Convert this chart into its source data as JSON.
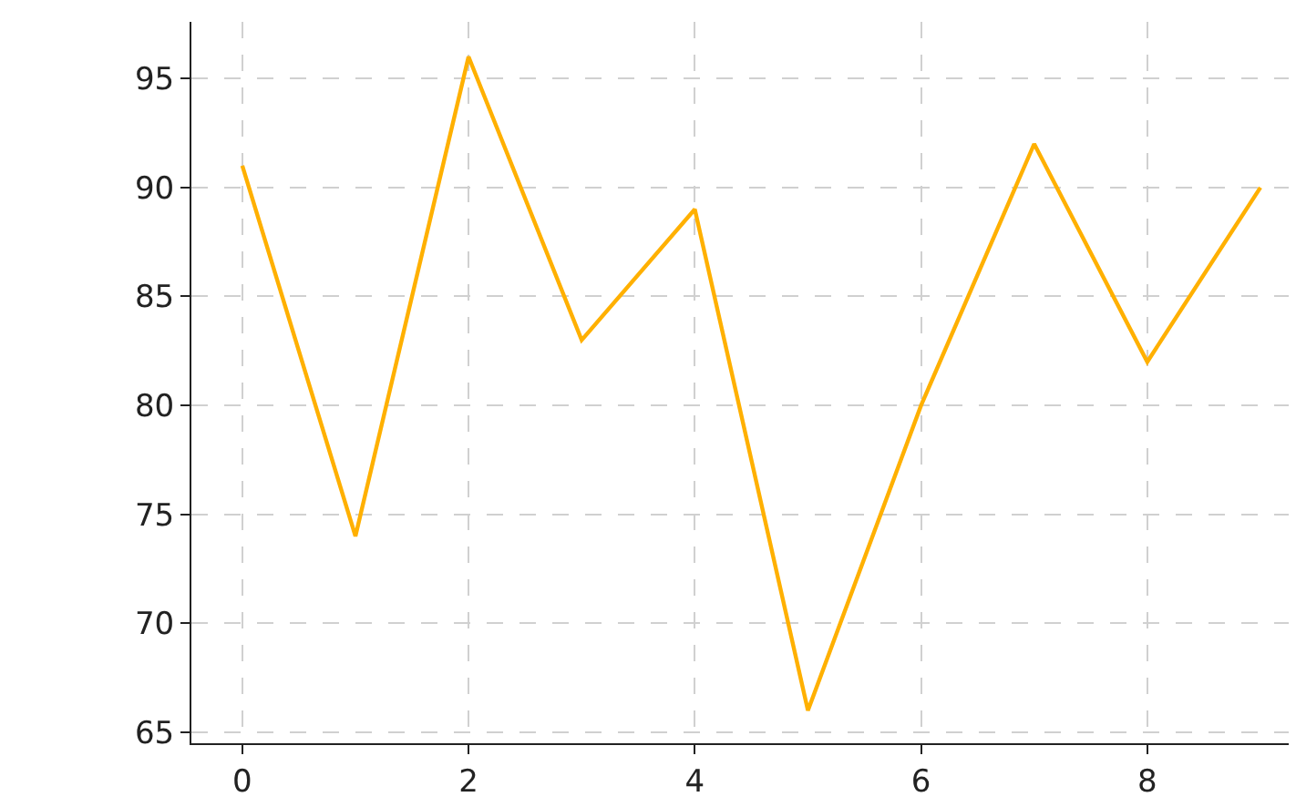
{
  "chart_data": {
    "type": "line",
    "x": [
      0,
      1,
      2,
      3,
      4,
      5,
      6,
      7,
      8,
      9
    ],
    "series": [
      {
        "color": "#ffb000",
        "values": [
          91,
          74,
          96,
          83,
          89,
          66,
          80,
          92,
          82,
          90
        ]
      }
    ],
    "xlim": [
      -0.45,
      9.25
    ],
    "xticks": [
      0,
      2,
      4,
      6,
      8
    ],
    "ylim": [
      64.5,
      97.6
    ],
    "yticks": [
      65,
      70,
      75,
      80,
      85,
      90,
      95
    ],
    "grid": true,
    "line_style": "solid"
  }
}
